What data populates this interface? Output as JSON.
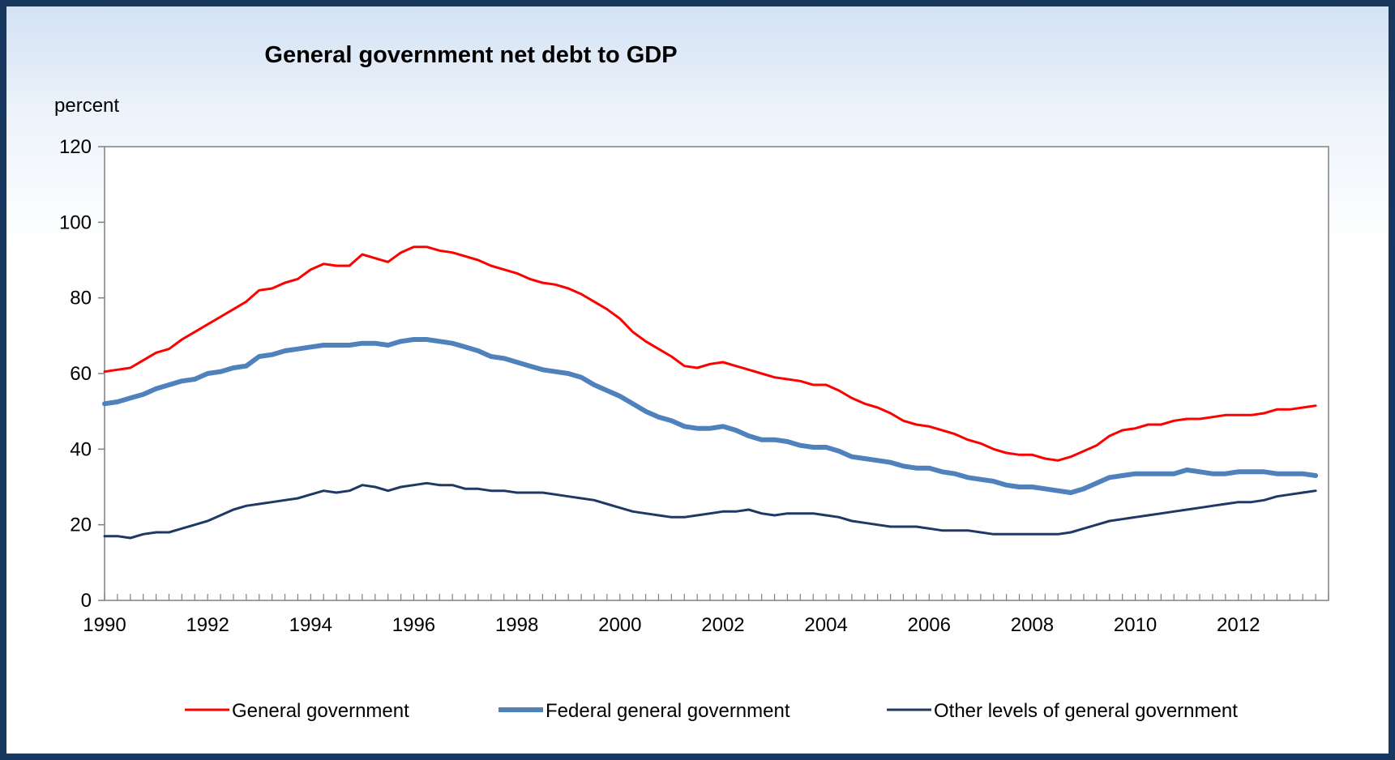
{
  "chart_data": {
    "type": "line",
    "title": "General government net debt to GDP",
    "ylabel": "percent",
    "xlabel": "",
    "ylim": [
      0,
      120
    ],
    "yticks": [
      0,
      20,
      40,
      60,
      80,
      100,
      120
    ],
    "xlim": [
      1990,
      2013.75
    ],
    "xticks": [
      1990,
      1992,
      1994,
      1996,
      1998,
      2000,
      2002,
      2004,
      2006,
      2008,
      2010,
      2012
    ],
    "quarters_per_year": 4,
    "grid": false,
    "legend_position": "bottom",
    "colors": {
      "border": "#17375e",
      "axis": "#808080"
    },
    "series": [
      {
        "name": "General government",
        "color": "#ff0000",
        "width": 3,
        "x_start": 1990,
        "x_step": 0.25,
        "values": [
          60.5,
          61,
          61.5,
          63.5,
          65.5,
          66.5,
          69,
          71,
          73,
          75,
          77,
          79,
          82,
          82.5,
          84,
          85,
          87.5,
          89,
          88.5,
          88.5,
          91.5,
          90.5,
          89.5,
          92,
          93.5,
          93.5,
          92.5,
          92,
          91,
          90,
          88.5,
          87.5,
          86.5,
          85,
          84,
          83.5,
          82.5,
          81,
          79,
          77,
          74.5,
          71,
          68.5,
          66.5,
          64.5,
          62,
          61.5,
          62.5,
          63,
          62,
          61,
          60,
          59,
          58.5,
          58,
          57,
          57,
          55.5,
          53.5,
          52,
          51,
          49.5,
          47.5,
          46.5,
          46,
          45,
          44,
          42.5,
          41.5,
          40,
          39,
          38.5,
          38.5,
          37.5,
          37,
          38,
          39.5,
          41,
          43.5,
          45,
          45.5,
          46.5,
          46.5,
          47.5,
          48,
          48,
          48.5,
          49,
          49,
          49,
          49.5,
          50.5,
          50.5,
          51,
          51.5
        ]
      },
      {
        "name": "Federal general government",
        "color": "#4f81bd",
        "width": 6,
        "x_start": 1990,
        "x_step": 0.25,
        "values": [
          52,
          52.5,
          53.5,
          54.5,
          56,
          57,
          58,
          58.5,
          60,
          60.5,
          61.5,
          62,
          64.5,
          65,
          66,
          66.5,
          67,
          67.5,
          67.5,
          67.5,
          68,
          68,
          67.5,
          68.5,
          69,
          69,
          68.5,
          68,
          67,
          66,
          64.5,
          64,
          63,
          62,
          61,
          60.5,
          60,
          59,
          57,
          55.5,
          54,
          52,
          50,
          48.5,
          47.5,
          46,
          45.5,
          45.5,
          46,
          45,
          43.5,
          42.5,
          42.5,
          42,
          41,
          40.5,
          40.5,
          39.5,
          38,
          37.5,
          37,
          36.5,
          35.5,
          35,
          35,
          34,
          33.5,
          32.5,
          32,
          31.5,
          30.5,
          30,
          30,
          29.5,
          29,
          28.5,
          29.5,
          31,
          32.5,
          33,
          33.5,
          33.5,
          33.5,
          33.5,
          34.5,
          34,
          33.5,
          33.5,
          34,
          34,
          34,
          33.5,
          33.5,
          33.5,
          33
        ]
      },
      {
        "name": "Other levels of general government",
        "color": "#1f3864",
        "width": 3,
        "x_start": 1990,
        "x_step": 0.25,
        "values": [
          17,
          17,
          16.5,
          17.5,
          18,
          18,
          19,
          20,
          21,
          22.5,
          24,
          25,
          25.5,
          26,
          26.5,
          27,
          28,
          29,
          28.5,
          29,
          30.5,
          30,
          29,
          30,
          30.5,
          31,
          30.5,
          30.5,
          29.5,
          29.5,
          29,
          29,
          28.5,
          28.5,
          28.5,
          28,
          27.5,
          27,
          26.5,
          25.5,
          24.5,
          23.5,
          23,
          22.5,
          22,
          22,
          22.5,
          23,
          23.5,
          23.5,
          24,
          23,
          22.5,
          23,
          23,
          23,
          22.5,
          22,
          21,
          20.5,
          20,
          19.5,
          19.5,
          19.5,
          19,
          18.5,
          18.5,
          18.5,
          18,
          17.5,
          17.5,
          17.5,
          17.5,
          17.5,
          17.5,
          18,
          19,
          20,
          21,
          21.5,
          22,
          22.5,
          23,
          23.5,
          24,
          24.5,
          25,
          25.5,
          26,
          26,
          26.5,
          27.5,
          28,
          28.5,
          29
        ]
      }
    ]
  }
}
